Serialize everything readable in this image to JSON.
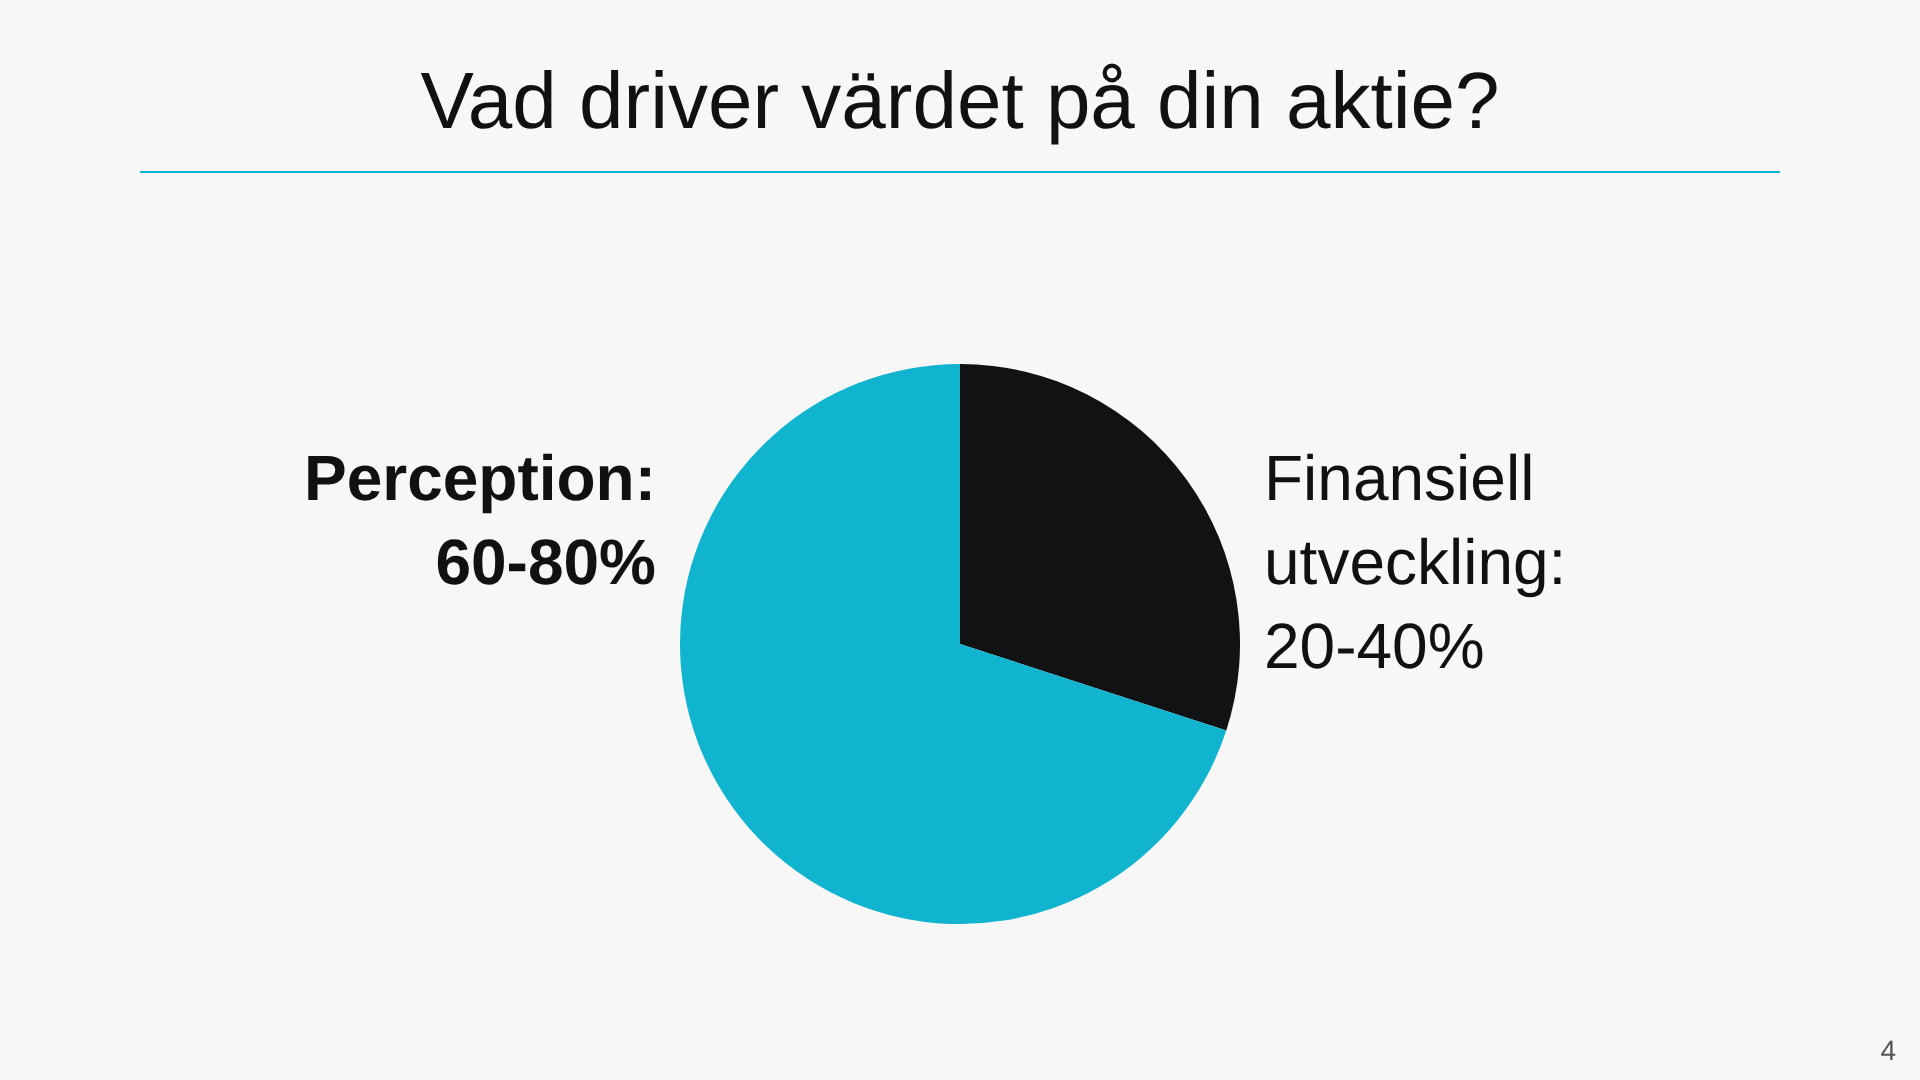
{
  "chart_data": {
    "type": "pie",
    "title": "Vad driver värdet på din aktie?",
    "categories": [
      "Finansiell\nutveckling:\n20-40%",
      "Perception:\n60-80%"
    ],
    "values": [
      30,
      70
    ],
    "colors": [
      "#111214",
      "#10b4cf"
    ],
    "annotations": [
      "4"
    ]
  }
}
